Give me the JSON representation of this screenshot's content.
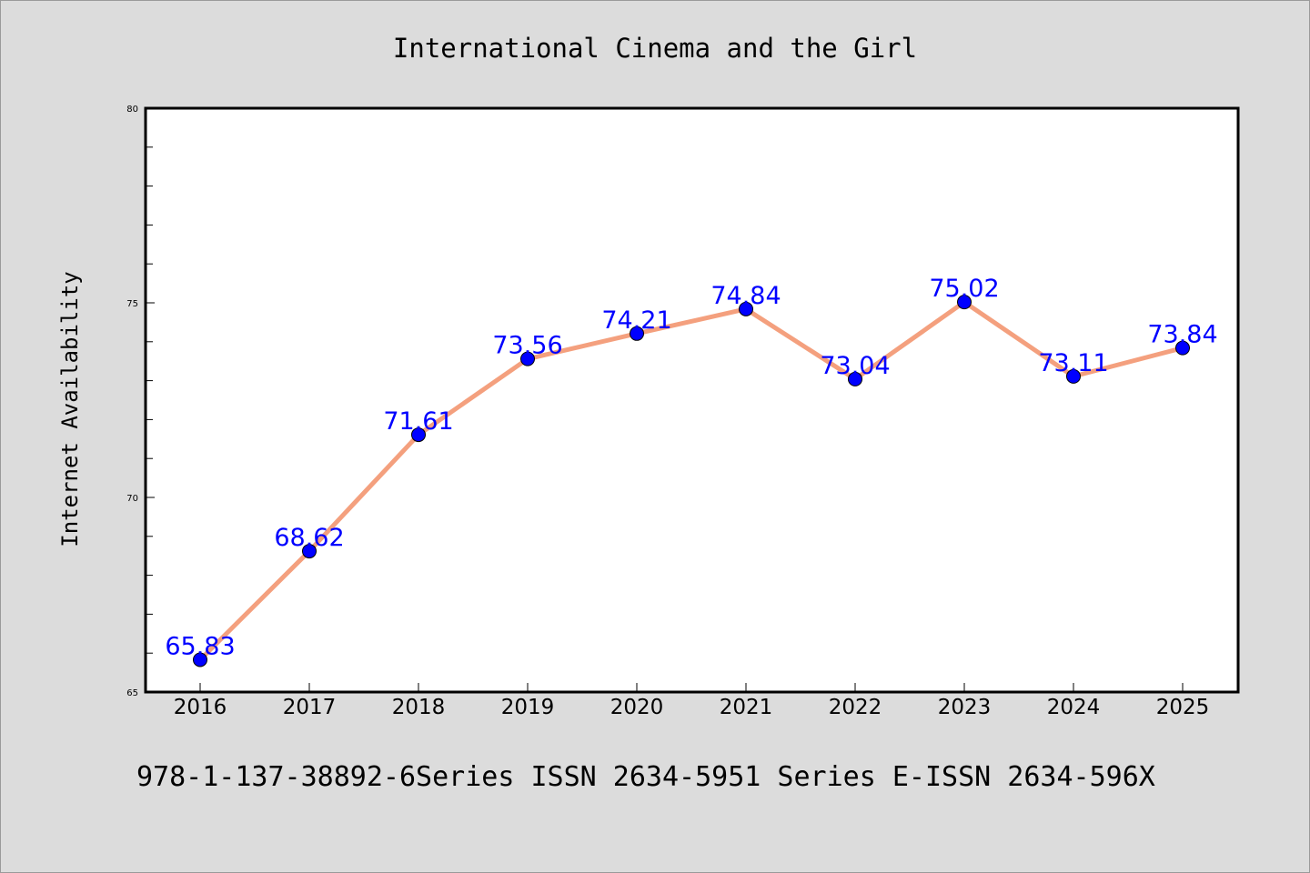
{
  "chart_data": {
    "type": "line",
    "title": "International Cinema and the Girl",
    "xlabel": "",
    "ylabel": "Internet Availability",
    "categories": [
      "2016",
      "2017",
      "2018",
      "2019",
      "2020",
      "2021",
      "2022",
      "2023",
      "2024",
      "2025"
    ],
    "series": [
      {
        "values": [
          65.83,
          68.62,
          71.61,
          73.56,
          74.21,
          74.84,
          73.04,
          75.02,
          73.11,
          73.84
        ],
        "labels": [
          "65.83",
          "68.62",
          "71.61",
          "73.56",
          "74.21",
          "74.84",
          "73.04",
          "75.02",
          "73.11",
          "73.84"
        ]
      }
    ],
    "ylim": [
      65,
      80
    ],
    "yticks": [
      "65",
      "70",
      "75",
      "80"
    ],
    "grid": false,
    "colors": {
      "line": "#f4a07e",
      "marker": "#0000ff",
      "label": "#0000ff",
      "background": "#dcdcdc",
      "plot": "#ffffff"
    }
  },
  "footer_text": "978-1-137-38892-6Series ISSN 2634-5951 Series E-ISSN 2634-596X"
}
